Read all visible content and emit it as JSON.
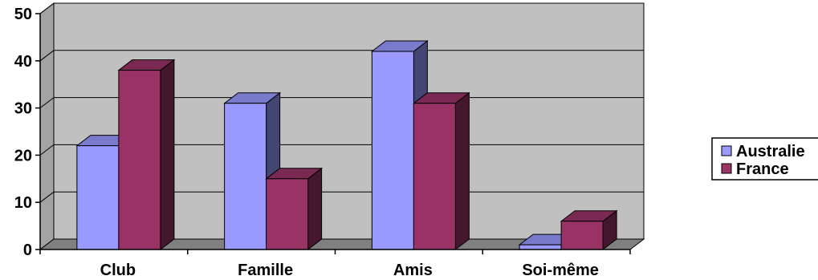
{
  "chart_data": {
    "type": "bar",
    "style": "3d-clustered-column",
    "categories": [
      "Club",
      "Famille",
      "Amis",
      "Soi-même"
    ],
    "series": [
      {
        "name": "Australie",
        "values": [
          22,
          31,
          42,
          1
        ],
        "color": "#9999ff"
      },
      {
        "name": "France",
        "values": [
          38,
          15,
          31,
          6
        ],
        "color": "#993366"
      }
    ],
    "ylim": [
      0,
      50
    ],
    "yticks": [
      0,
      10,
      20,
      30,
      40,
      50
    ],
    "grid": true,
    "legend": "right",
    "wall_color": "#c0c0c0",
    "floor_color": "#808080"
  }
}
